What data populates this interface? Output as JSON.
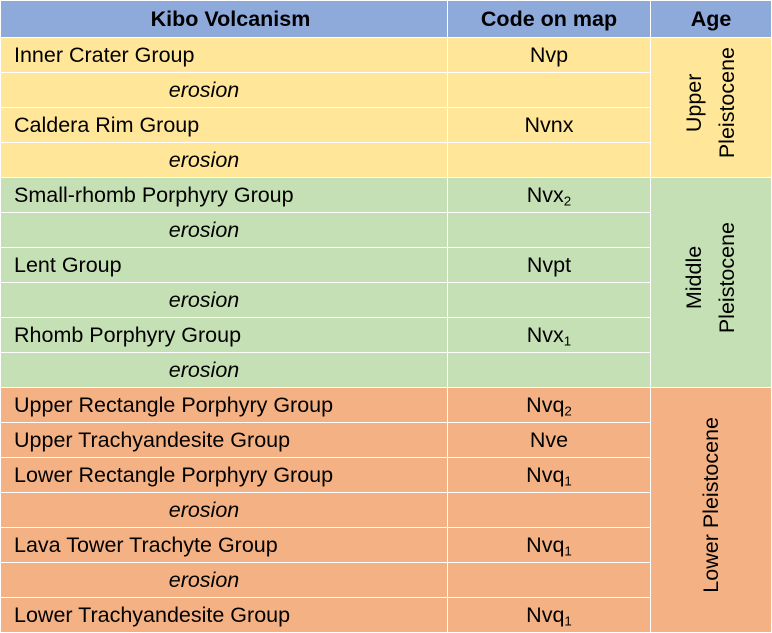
{
  "table": {
    "headers": {
      "unit": "Kibo Volcanism",
      "code": "Code on map",
      "age": "Age"
    },
    "ages": {
      "upper": [
        "Upper",
        "Pleistocene"
      ],
      "middle": [
        "Middle",
        "Pleistocene"
      ],
      "lower": "Lower Pleistocene"
    },
    "colors": {
      "header": "#8eaadb",
      "upper": "#ffe699",
      "middle": "#c5e0b4",
      "lower": "#f4b183"
    },
    "rows": [
      {
        "name": "Inner Crater Group",
        "code": "Nvp",
        "sub": ""
      },
      {
        "name": "erosion",
        "code": "",
        "sub": ""
      },
      {
        "name": "Caldera Rim Group",
        "code": "Nvnx",
        "sub": ""
      },
      {
        "name": "erosion",
        "code": "",
        "sub": ""
      },
      {
        "name": "Small-rhomb Porphyry Group",
        "code": "Nvx",
        "sub": "2"
      },
      {
        "name": "erosion",
        "code": "",
        "sub": ""
      },
      {
        "name": "Lent Group",
        "code": "Nvpt",
        "sub": ""
      },
      {
        "name": "erosion",
        "code": "",
        "sub": ""
      },
      {
        "name": "Rhomb Porphyry Group",
        "code": "Nvx",
        "sub": "1"
      },
      {
        "name": "erosion",
        "code": "",
        "sub": ""
      },
      {
        "name": "Upper Rectangle Porphyry Group",
        "code": "Nvq",
        "sub": "2"
      },
      {
        "name": "Upper Trachyandesite Group",
        "code": "Nve",
        "sub": ""
      },
      {
        "name": "Lower Rectangle Porphyry Group",
        "code": "Nvq",
        "sub": "1"
      },
      {
        "name": "erosion",
        "code": "",
        "sub": ""
      },
      {
        "name": "Lava Tower Trachyte Group",
        "code": "Nvq",
        "sub": "1"
      },
      {
        "name": "erosion",
        "code": "",
        "sub": ""
      },
      {
        "name": "Lower Trachyandesite Group",
        "code": "Nvq",
        "sub": "1"
      }
    ]
  }
}
